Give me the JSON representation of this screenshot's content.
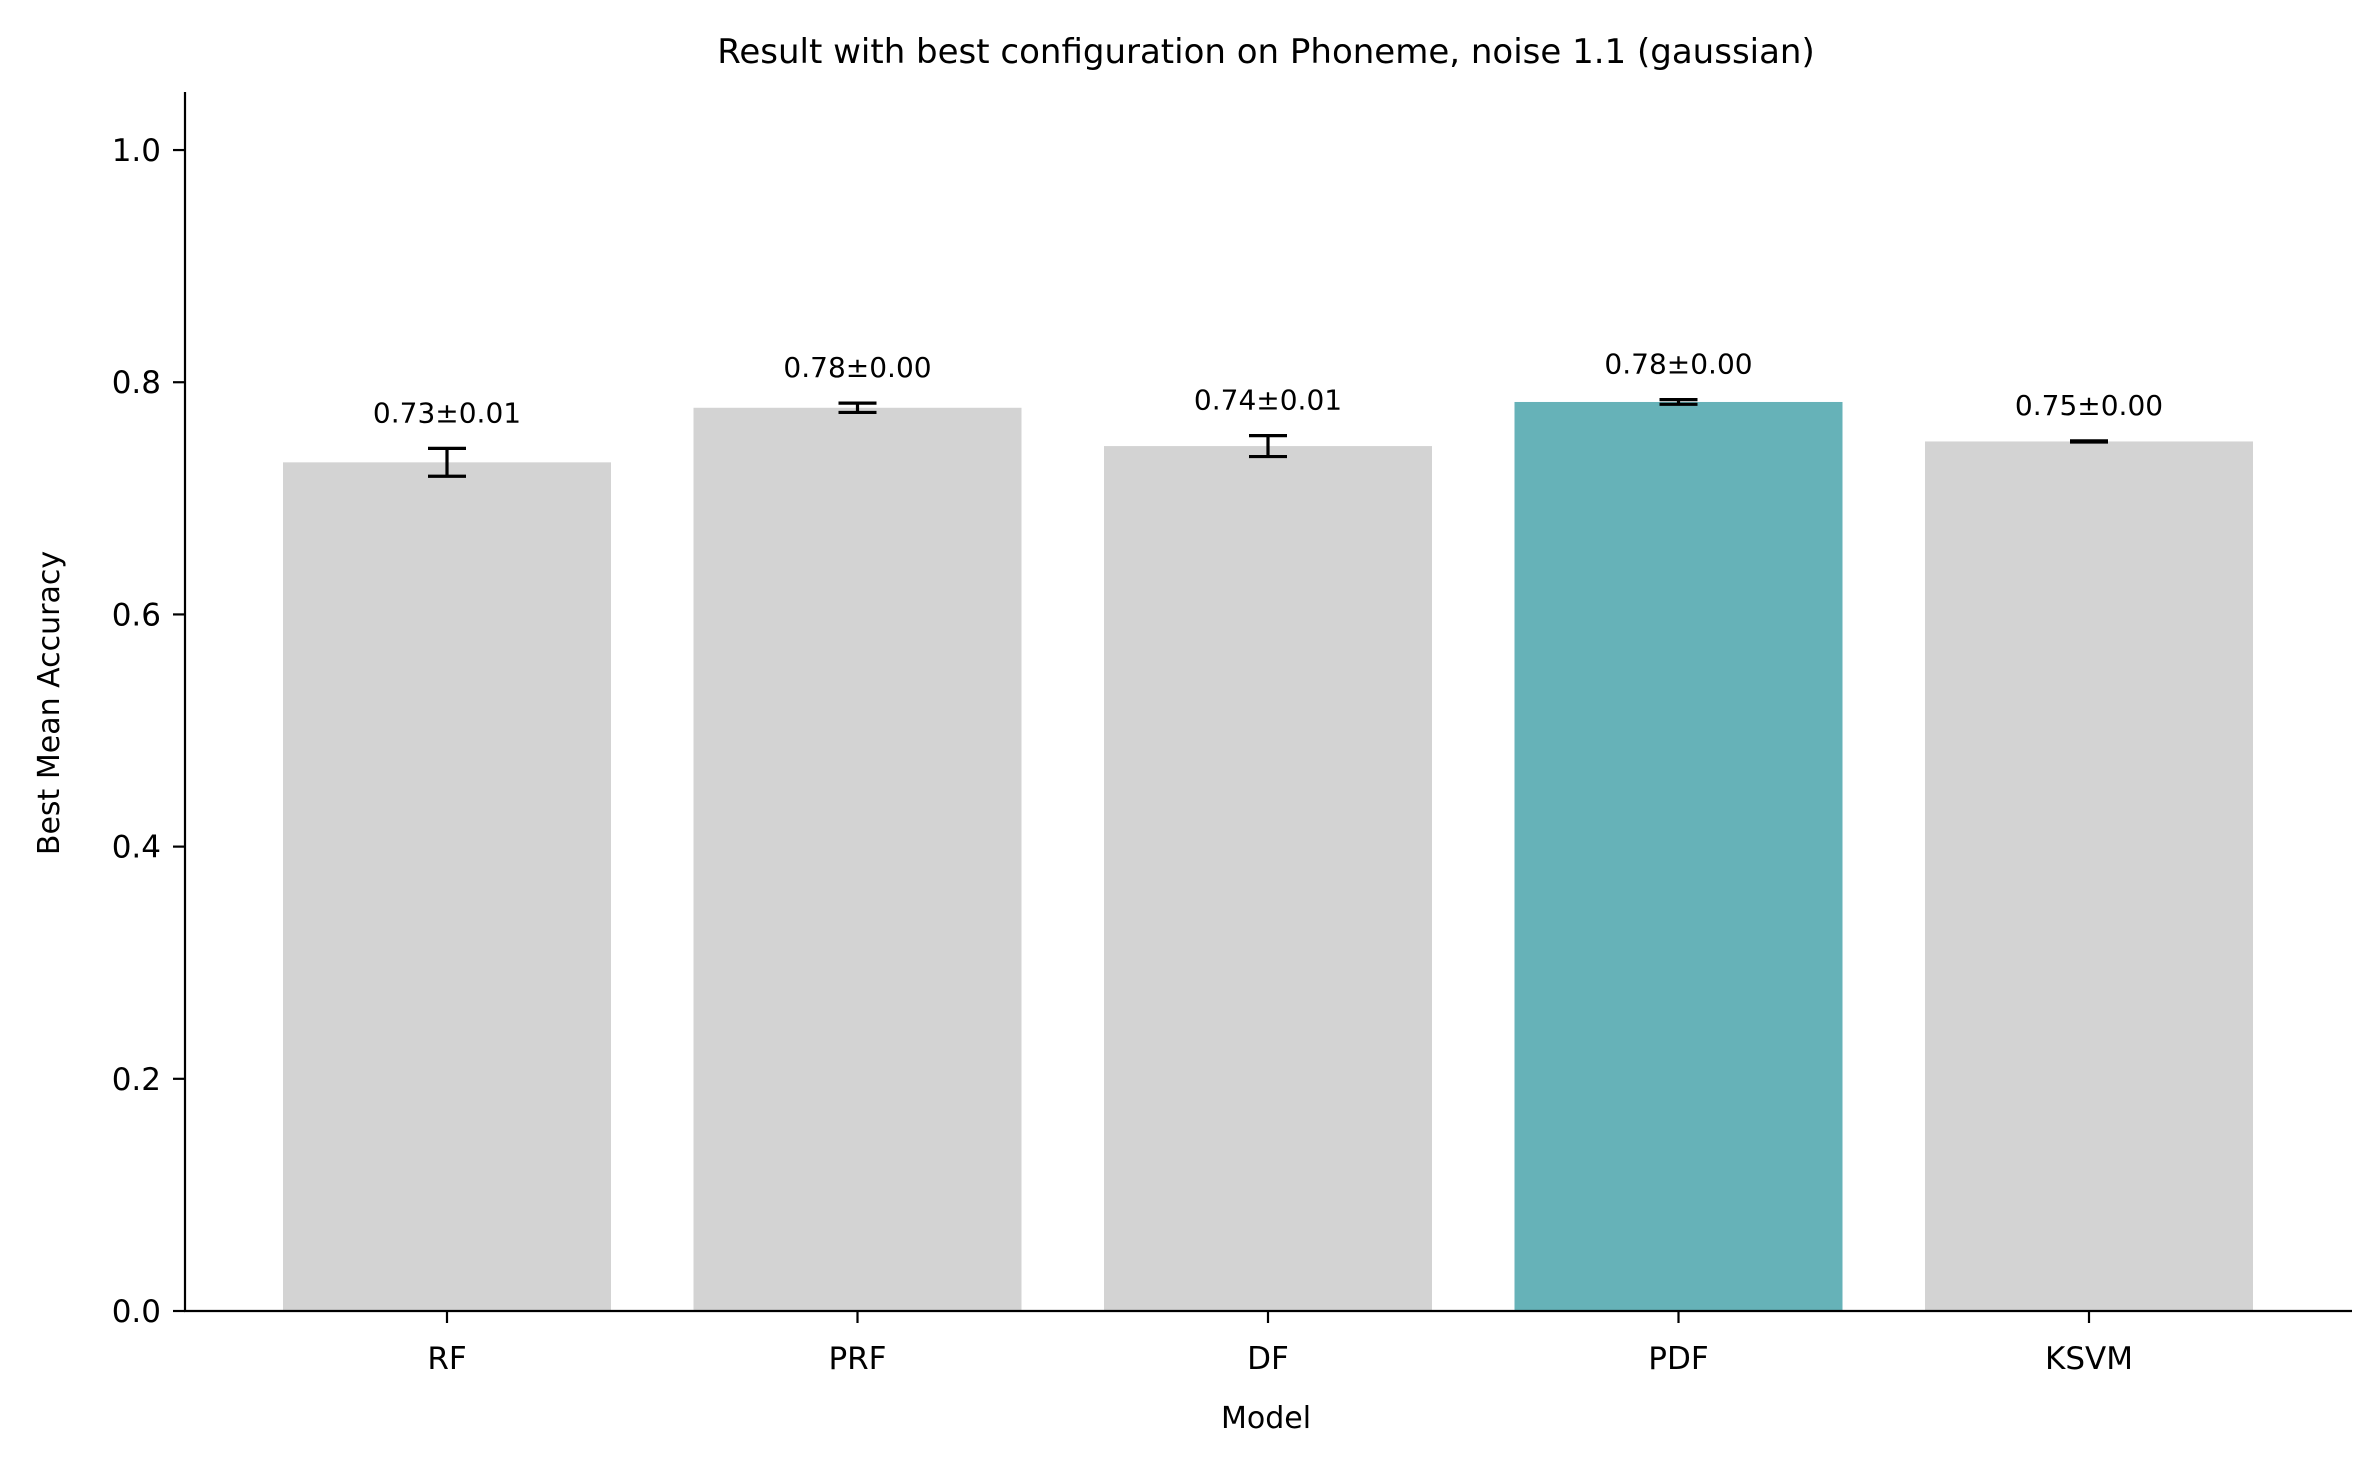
{
  "chart_data": {
    "type": "bar",
    "title": "Result with best configuration on Phoneme, noise 1.1 (gaussian)",
    "xlabel": "Model",
    "ylabel": "Best Mean Accuracy",
    "categories": [
      "RF",
      "PRF",
      "DF",
      "PDF",
      "KSVM"
    ],
    "values": [
      0.731,
      0.778,
      0.745,
      0.783,
      0.749
    ],
    "errors": [
      0.012,
      0.004,
      0.009,
      0.002,
      0.0005
    ],
    "data_labels": [
      "0.73±0.01",
      "0.78±0.00",
      "0.74±0.01",
      "0.78±0.00",
      "0.75±0.00"
    ],
    "highlight_index": 3,
    "colors": {
      "default": "#d3d3d3",
      "highlight": "#66b2b8"
    },
    "ylim": [
      0,
      1.05
    ],
    "yticks": [
      "0.0",
      "0.2",
      "0.4",
      "0.6",
      "0.8",
      "1.0"
    ],
    "grid": false,
    "legend": "none"
  }
}
